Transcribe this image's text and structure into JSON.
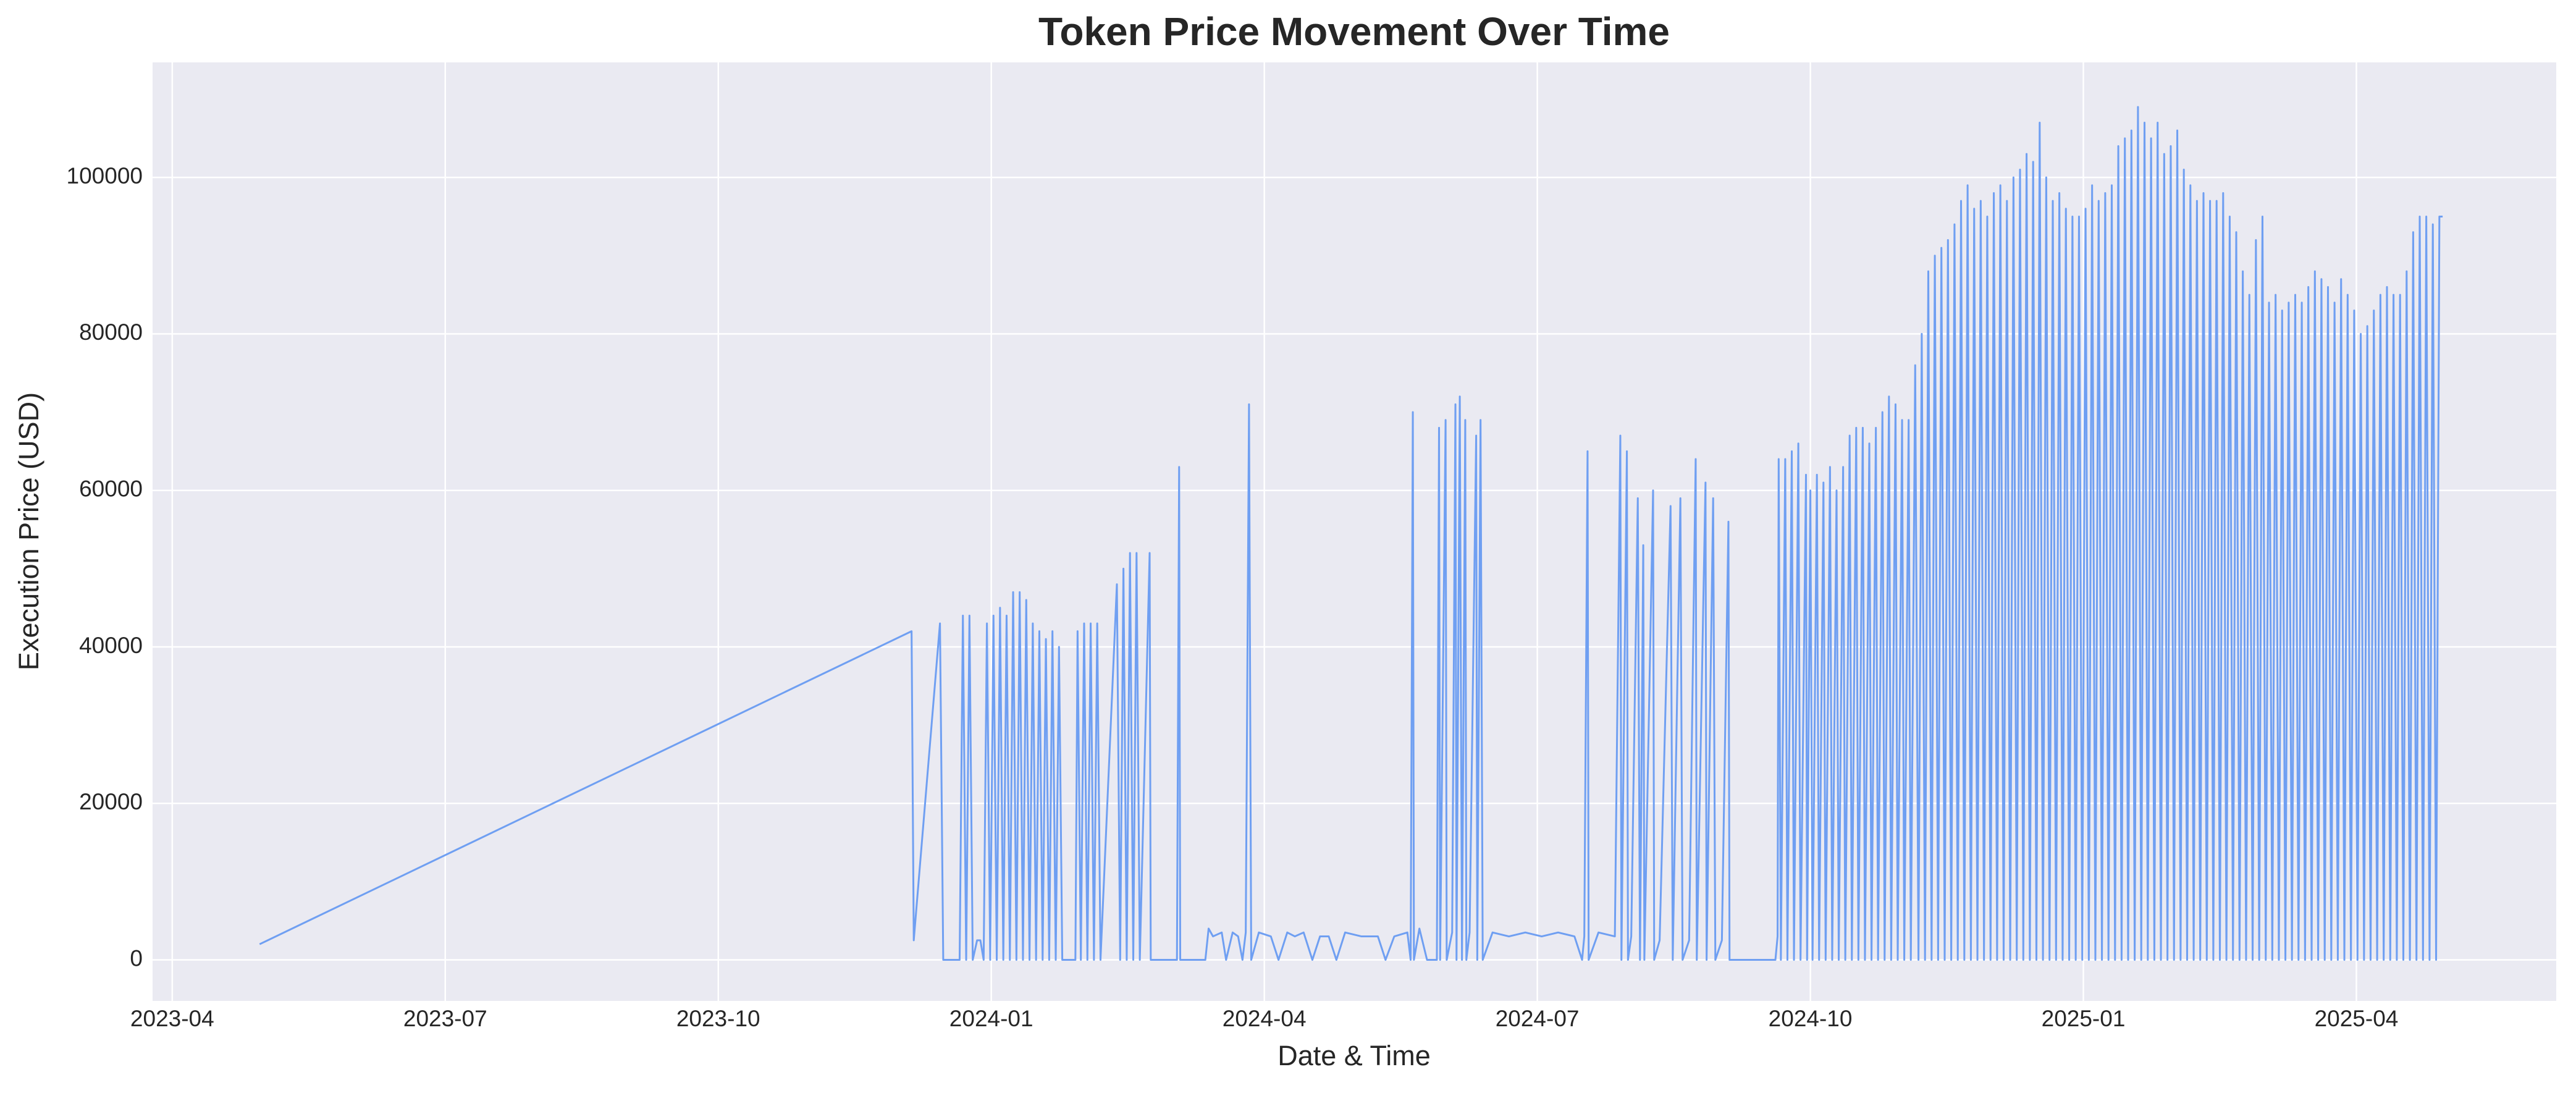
{
  "chart_data": {
    "type": "line",
    "title": "Token Price Movement Over Time",
    "x_label": "Date & Time",
    "y_label": "Execution Price (USD)",
    "color": "#6f9ff2",
    "grid": true,
    "xlim": [
      2023.232,
      2025.433
    ],
    "ylim": [
      -5250,
      114700
    ],
    "xticks": [
      {
        "value": 2023.25,
        "label": "2023-04"
      },
      {
        "value": 2023.5,
        "label": "2023-07"
      },
      {
        "value": 2023.75,
        "label": "2023-10"
      },
      {
        "value": 2024.0,
        "label": "2024-01"
      },
      {
        "value": 2024.25,
        "label": "2024-04"
      },
      {
        "value": 2024.5,
        "label": "2024-07"
      },
      {
        "value": 2024.75,
        "label": "2024-10"
      },
      {
        "value": 2025.0,
        "label": "2025-01"
      },
      {
        "value": 2025.25,
        "label": "2025-04"
      }
    ],
    "yticks": [
      0,
      20000,
      40000,
      60000,
      80000,
      100000
    ],
    "x": [
      2023.33,
      2023.927,
      2023.929,
      2023.953,
      2023.956,
      2023.971,
      2023.974,
      2023.977,
      2023.98,
      2023.983,
      2023.987,
      2023.99,
      2023.993,
      2023.996,
      2023.999,
      2024.002,
      2024.005,
      2024.008,
      2024.011,
      2024.014,
      2024.017,
      2024.02,
      2024.023,
      2024.026,
      2024.029,
      2024.032,
      2024.035,
      2024.038,
      2024.041,
      2024.044,
      2024.047,
      2024.05,
      2024.053,
      2024.056,
      2024.059,
      2024.062,
      2024.065,
      2024.077,
      2024.079,
      2024.082,
      2024.085,
      2024.088,
      2024.091,
      2024.094,
      2024.097,
      2024.1,
      2024.115,
      2024.118,
      2024.121,
      2024.124,
      2024.127,
      2024.13,
      2024.133,
      2024.136,
      2024.145,
      2024.146,
      2024.17,
      2024.172,
      2024.173,
      2024.196,
      2024.199,
      2024.203,
      2024.211,
      2024.215,
      2024.221,
      2024.226,
      2024.23,
      2024.233,
      2024.236,
      2024.238,
      2024.245,
      2024.256,
      2024.263,
      2024.271,
      2024.278,
      2024.286,
      2024.294,
      2024.301,
      2024.309,
      2024.316,
      2024.324,
      2024.339,
      2024.354,
      2024.361,
      2024.369,
      2024.381,
      2024.384,
      2024.386,
      2024.387,
      2024.392,
      2024.399,
      2024.408,
      2024.41,
      2024.411,
      2024.416,
      2024.417,
      2024.422,
      2024.425,
      2024.426,
      2024.429,
      2024.431,
      2024.434,
      2024.435,
      2024.438,
      2024.444,
      2024.445,
      2024.448,
      2024.45,
      2024.459,
      2024.474,
      2024.489,
      2024.504,
      2024.519,
      2024.534,
      2024.541,
      2024.543,
      2024.546,
      2024.547,
      2024.556,
      2024.571,
      2024.576,
      2024.577,
      2024.582,
      2024.583,
      2024.586,
      2024.592,
      2024.594,
      2024.597,
      2024.598,
      2024.606,
      2024.607,
      2024.612,
      2024.622,
      2024.624,
      2024.631,
      2024.633,
      2024.639,
      2024.645,
      2024.646,
      2024.654,
      2024.655,
      2024.661,
      2024.663,
      2024.669,
      2024.675,
      2024.676,
      2024.718,
      2024.72,
      2024.721,
      2024.723,
      2024.727,
      2024.729,
      2024.733,
      2024.735,
      2024.739,
      2024.741,
      2024.746,
      2024.747,
      2024.75,
      2024.752,
      2024.756,
      2024.758,
      2024.762,
      2024.764,
      2024.768,
      2024.77,
      2024.774,
      2024.776,
      2024.78,
      2024.782,
      2024.786,
      2024.788,
      2024.792,
      2024.794,
      2024.798,
      2024.8,
      2024.804,
      2024.806,
      2024.81,
      2024.812,
      2024.816,
      2024.818,
      2024.822,
      2024.824,
      2024.828,
      2024.83,
      2024.834,
      2024.836,
      2024.84,
      2024.842,
      2024.846,
      2024.849,
      2024.852,
      2024.855,
      2024.858,
      2024.861,
      2024.864,
      2024.867,
      2024.87,
      2024.873,
      2024.876,
      2024.879,
      2024.882,
      2024.885,
      2024.888,
      2024.891,
      2024.894,
      2024.897,
      2024.9,
      2024.903,
      2024.906,
      2024.909,
      2024.912,
      2024.915,
      2024.918,
      2024.921,
      2024.924,
      2024.927,
      2024.93,
      2024.933,
      2024.936,
      2024.939,
      2024.942,
      2024.945,
      2024.948,
      2024.951,
      2024.954,
      2024.957,
      2024.96,
      2024.963,
      2024.966,
      2024.969,
      2024.972,
      2024.975,
      2024.978,
      2024.981,
      2024.984,
      2024.987,
      2024.99,
      2024.993,
      2024.996,
      2024.999,
      2025.002,
      2025.005,
      2025.008,
      2025.011,
      2025.014,
      2025.017,
      2025.02,
      2025.023,
      2025.026,
      2025.029,
      2025.032,
      2025.035,
      2025.038,
      2025.041,
      2025.044,
      2025.047,
      2025.05,
      2025.053,
      2025.056,
      2025.059,
      2025.062,
      2025.065,
      2025.068,
      2025.071,
      2025.074,
      2025.077,
      2025.08,
      2025.083,
      2025.086,
      2025.089,
      2025.092,
      2025.095,
      2025.098,
      2025.101,
      2025.104,
      2025.107,
      2025.11,
      2025.113,
      2025.116,
      2025.119,
      2025.122,
      2025.125,
      2025.128,
      2025.131,
      2025.134,
      2025.137,
      2025.14,
      2025.143,
      2025.146,
      2025.149,
      2025.152,
      2025.155,
      2025.158,
      2025.161,
      2025.164,
      2025.167,
      2025.17,
      2025.173,
      2025.176,
      2025.179,
      2025.182,
      2025.185,
      2025.188,
      2025.191,
      2025.194,
      2025.197,
      2025.2,
      2025.203,
      2025.206,
      2025.209,
      2025.212,
      2025.215,
      2025.218,
      2025.221,
      2025.224,
      2025.227,
      2025.23,
      2025.233,
      2025.236,
      2025.239,
      2025.242,
      2025.245,
      2025.248,
      2025.251,
      2025.254,
      2025.257,
      2025.26,
      2025.263,
      2025.266,
      2025.269,
      2025.272,
      2025.275,
      2025.278,
      2025.281,
      2025.284,
      2025.287,
      2025.29,
      2025.293,
      2025.296,
      2025.299,
      2025.302,
      2025.305,
      2025.308,
      2025.311,
      2025.314,
      2025.317,
      2025.32,
      2025.323,
      2025.326,
      2025.329
    ],
    "values": [
      2000,
      42000,
      2500,
      43000,
      0,
      0,
      44000,
      0,
      44000,
      0,
      2500,
      2500,
      0,
      43000,
      0,
      44000,
      0,
      45000,
      0,
      44000,
      0,
      47000,
      0,
      47000,
      0,
      46000,
      0,
      43000,
      0,
      42000,
      0,
      41000,
      0,
      42000,
      0,
      40000,
      0,
      0,
      42000,
      0,
      43000,
      0,
      43000,
      0,
      43000,
      0,
      48000,
      0,
      50000,
      0,
      52000,
      0,
      52000,
      0,
      52000,
      0,
      0,
      63000,
      0,
      0,
      4000,
      3000,
      3500,
      0,
      3500,
      3000,
      0,
      3500,
      71000,
      0,
      3500,
      3000,
      0,
      3500,
      3000,
      3500,
      0,
      3000,
      3000,
      0,
      3500,
      3000,
      3000,
      0,
      3000,
      3500,
      0,
      70000,
      0,
      4000,
      0,
      0,
      68000,
      0,
      69000,
      0,
      3500,
      71000,
      0,
      72000,
      0,
      69000,
      0,
      3500,
      67000,
      0,
      69000,
      0,
      3500,
      3000,
      3500,
      3000,
      3500,
      3000,
      0,
      3000,
      65000,
      0,
      3500,
      3000,
      67000,
      0,
      65000,
      0,
      3000,
      59000,
      0,
      53000,
      0,
      60000,
      0,
      2500,
      58000,
      0,
      59000,
      0,
      2500,
      64000,
      0,
      61000,
      0,
      59000,
      0,
      2500,
      56000,
      0,
      0,
      3000,
      64000,
      0,
      64000,
      0,
      65000,
      0,
      66000,
      0,
      62000,
      0,
      60000,
      0,
      62000,
      0,
      61000,
      0,
      63000,
      0,
      60000,
      0,
      63000,
      0,
      67000,
      0,
      68000,
      0,
      68000,
      0,
      66000,
      0,
      68000,
      0,
      70000,
      0,
      72000,
      0,
      71000,
      0,
      69000,
      0,
      69000,
      0,
      76000,
      0,
      80000,
      0,
      88000,
      0,
      90000,
      0,
      91000,
      0,
      92000,
      0,
      94000,
      0,
      97000,
      0,
      99000,
      0,
      96000,
      0,
      97000,
      0,
      95000,
      0,
      98000,
      0,
      99000,
      0,
      97000,
      0,
      100000,
      0,
      101000,
      0,
      103000,
      0,
      102000,
      0,
      107000,
      0,
      100000,
      0,
      97000,
      0,
      98000,
      0,
      96000,
      0,
      95000,
      0,
      95000,
      0,
      96000,
      0,
      99000,
      0,
      97000,
      0,
      98000,
      0,
      99000,
      0,
      104000,
      0,
      105000,
      0,
      106000,
      0,
      109000,
      0,
      107000,
      0,
      105000,
      0,
      107000,
      0,
      103000,
      0,
      104000,
      0,
      106000,
      0,
      101000,
      0,
      99000,
      0,
      97000,
      0,
      98000,
      0,
      97000,
      0,
      97000,
      0,
      98000,
      0,
      95000,
      0,
      93000,
      0,
      88000,
      0,
      85000,
      0,
      92000,
      0,
      95000,
      0,
      84000,
      0,
      85000,
      0,
      83000,
      0,
      84000,
      0,
      85000,
      0,
      84000,
      0,
      86000,
      0,
      88000,
      0,
      87000,
      0,
      86000,
      0,
      84000,
      0,
      87000,
      0,
      85000,
      0,
      83000,
      0,
      80000,
      0,
      81000,
      0,
      83000,
      0,
      85000,
      0,
      86000,
      0,
      85000,
      0,
      85000,
      0,
      88000,
      0,
      93000,
      0,
      95000,
      0,
      95000,
      0,
      94000,
      0,
      95000,
      95000
    ]
  }
}
